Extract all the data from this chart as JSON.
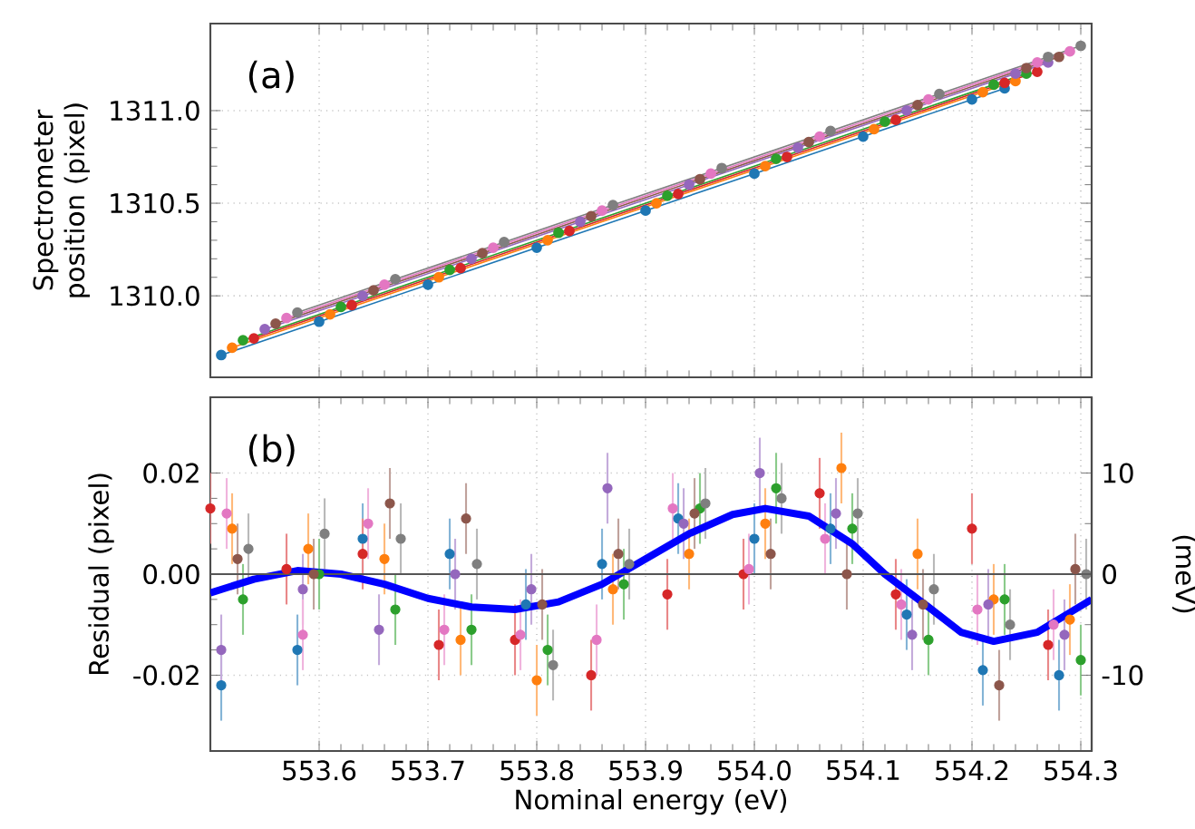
{
  "chart_data": [
    {
      "type": "line",
      "ylabel": "Spectrometer position (pixel)",
      "annotations": [
        "(a)"
      ],
      "marker": "circle",
      "grid": true,
      "tick_labels": "y",
      "xlim": [
        553.5,
        554.31
      ],
      "xticks": [
        {
          "value": 553.6,
          "label": null
        },
        {
          "value": 553.7,
          "label": null
        },
        {
          "value": 553.8,
          "label": null
        },
        {
          "value": 553.9,
          "label": null
        },
        {
          "value": 554.0,
          "label": null
        },
        {
          "value": 554.1,
          "label": null
        },
        {
          "value": 554.2,
          "label": null
        },
        {
          "value": 554.3,
          "label": null
        }
      ],
      "ylim": [
        1309.56,
        1311.47
      ],
      "yticks": [
        {
          "value": 1310,
          "label": "1310.0"
        },
        1310.5,
        {
          "value": 1311,
          "label": "1311.0"
        }
      ],
      "series": [
        {
          "color": "#1f77b4",
          "x": [
            553.51,
            553.6,
            553.7,
            553.8,
            553.9,
            554.0,
            554.1,
            554.2,
            554.23
          ],
          "values": [
            1309.68,
            1309.86,
            1310.06,
            1310.26,
            1310.46,
            1310.66,
            1310.86,
            1311.06,
            1311.12
          ]
        },
        {
          "color": "#ff7f0e",
          "x": [
            553.52,
            553.61,
            553.71,
            553.81,
            553.91,
            554.01,
            554.11,
            554.21,
            554.24
          ],
          "values": [
            1309.72,
            1309.9,
            1310.1,
            1310.3,
            1310.5,
            1310.7,
            1310.9,
            1311.1,
            1311.16
          ]
        },
        {
          "color": "#2ca02c",
          "x": [
            553.53,
            553.62,
            553.72,
            553.82,
            553.92,
            554.02,
            554.12,
            554.22,
            554.25
          ],
          "values": [
            1309.76,
            1309.94,
            1310.14,
            1310.34,
            1310.54,
            1310.74,
            1310.94,
            1311.14,
            1311.2
          ]
        },
        {
          "color": "#d62728",
          "x": [
            553.54,
            553.63,
            553.73,
            553.83,
            553.93,
            554.03,
            554.13,
            554.23,
            554.26
          ],
          "values": [
            1309.77,
            1309.95,
            1310.15,
            1310.35,
            1310.55,
            1310.75,
            1310.95,
            1311.15,
            1311.21
          ]
        },
        {
          "color": "#9467bd",
          "x": [
            553.55,
            553.64,
            553.74,
            553.84,
            553.94,
            554.04,
            554.14,
            554.24,
            554.27
          ],
          "values": [
            1309.82,
            1310.0,
            1310.2,
            1310.4,
            1310.6,
            1310.8,
            1311.0,
            1311.2,
            1311.26
          ]
        },
        {
          "color": "#8c564b",
          "x": [
            553.56,
            553.65,
            553.75,
            553.85,
            553.95,
            554.05,
            554.15,
            554.25,
            554.28
          ],
          "values": [
            1309.85,
            1310.03,
            1310.23,
            1310.43,
            1310.63,
            1310.83,
            1311.03,
            1311.23,
            1311.29
          ]
        },
        {
          "color": "#e377c2",
          "x": [
            553.57,
            553.66,
            553.76,
            553.86,
            553.96,
            554.06,
            554.16,
            554.26,
            554.29
          ],
          "values": [
            1309.88,
            1310.06,
            1310.26,
            1310.46,
            1310.66,
            1310.86,
            1311.06,
            1311.26,
            1311.32
          ]
        },
        {
          "color": "#7f7f7f",
          "x": [
            553.58,
            553.67,
            553.77,
            553.87,
            553.97,
            554.07,
            554.17,
            554.27,
            554.3
          ],
          "values": [
            1309.91,
            1310.09,
            1310.29,
            1310.49,
            1310.69,
            1310.89,
            1311.09,
            1311.29,
            1311.35
          ]
        }
      ]
    },
    {
      "type": "scatter",
      "xlabel": "Nominal energy (eV)",
      "ylabel": "Residual (pixel)",
      "y2label": "(meV)",
      "annotations": [
        "(b)"
      ],
      "marker": "circle",
      "grid": true,
      "xlim": [
        553.5,
        554.31
      ],
      "xticks": [
        553.6,
        553.7,
        553.8,
        553.9,
        {
          "value": 554.0,
          "label": "554.0"
        },
        554.1,
        554.2,
        554.3
      ],
      "ylim": [
        -0.035,
        0.035
      ],
      "yticks": [
        -0.02,
        {
          "value": 0,
          "label": "0.00"
        },
        0.02
      ],
      "y2lim": [
        -17.5,
        17.5
      ],
      "y2ticks": [
        -10,
        0,
        10
      ],
      "ref_lines": [
        {
          "axis": "y",
          "value": 0,
          "color": "#555555"
        }
      ],
      "series": [
        {
          "color": "#1f77b4",
          "x": [
            553.51,
            553.58,
            553.64,
            553.72,
            553.79,
            553.86,
            553.93,
            554.0,
            554.07,
            554.14,
            554.21,
            554.28
          ],
          "values": [
            -0.022,
            -0.015,
            0.007,
            0.004,
            -0.006,
            0.002,
            0.011,
            0.007,
            0.009,
            -0.008,
            -0.019,
            -0.02
          ],
          "errors": [
            0.007,
            0.007,
            0.007,
            0.007,
            0.007,
            0.007,
            0.007,
            0.007,
            0.007,
            0.007,
            0.007,
            0.007
          ]
        },
        {
          "color": "#ff7f0e",
          "x": [
            553.52,
            553.59,
            553.66,
            553.73,
            553.8,
            553.87,
            553.94,
            554.01,
            554.08,
            554.15,
            554.22,
            554.29
          ],
          "values": [
            0.009,
            0.005,
            0.003,
            -0.013,
            -0.021,
            -0.003,
            0.004,
            0.01,
            0.021,
            0.004,
            -0.005,
            -0.009
          ],
          "errors": [
            0.007,
            0.007,
            0.007,
            0.007,
            0.007,
            0.007,
            0.007,
            0.007,
            0.007,
            0.007,
            0.007,
            0.007
          ]
        },
        {
          "color": "#2ca02c",
          "x": [
            553.53,
            553.6,
            553.67,
            553.74,
            553.81,
            553.88,
            553.95,
            554.02,
            554.09,
            554.16,
            554.23,
            554.3
          ],
          "values": [
            -0.005,
            0.0,
            -0.007,
            -0.011,
            -0.015,
            -0.002,
            0.013,
            0.017,
            0.009,
            -0.013,
            -0.005,
            -0.017
          ],
          "errors": [
            0.007,
            0.007,
            0.007,
            0.007,
            0.007,
            0.007,
            0.007,
            0.007,
            0.007,
            0.007,
            0.007,
            0.007
          ]
        },
        {
          "color": "#d62728",
          "x": [
            553.5,
            553.57,
            553.64,
            553.71,
            553.78,
            553.85,
            553.92,
            553.99,
            554.06,
            554.13,
            554.2,
            554.27
          ],
          "values": [
            0.013,
            0.001,
            0.004,
            -0.014,
            -0.013,
            -0.02,
            -0.004,
            0.0,
            0.016,
            -0.004,
            0.009,
            -0.014
          ],
          "errors": [
            0.007,
            0.007,
            0.007,
            0.007,
            0.007,
            0.007,
            0.007,
            0.007,
            0.007,
            0.007,
            0.007,
            0.007
          ]
        },
        {
          "color": "#9467bd",
          "x": [
            553.51,
            553.585,
            553.655,
            553.725,
            553.795,
            553.865,
            553.935,
            554.005,
            554.075,
            554.145,
            554.215,
            554.285
          ],
          "values": [
            -0.015,
            -0.003,
            -0.011,
            0.0,
            -0.003,
            0.017,
            0.01,
            0.02,
            0.012,
            -0.012,
            -0.006,
            -0.012
          ],
          "errors": [
            0.007,
            0.007,
            0.007,
            0.007,
            0.007,
            0.007,
            0.007,
            0.007,
            0.007,
            0.007,
            0.007,
            0.007
          ]
        },
        {
          "color": "#8c564b",
          "x": [
            553.525,
            553.595,
            553.665,
            553.735,
            553.805,
            553.875,
            553.945,
            554.015,
            554.085,
            554.155,
            554.225,
            554.295
          ],
          "values": [
            0.003,
            0.0,
            0.014,
            0.011,
            -0.006,
            0.004,
            0.012,
            0.004,
            0.0,
            -0.006,
            -0.022,
            0.001
          ],
          "errors": [
            0.007,
            0.007,
            0.007,
            0.007,
            0.007,
            0.007,
            0.007,
            0.007,
            0.007,
            0.007,
            0.007,
            0.007
          ]
        },
        {
          "color": "#e377c2",
          "x": [
            553.515,
            553.585,
            553.645,
            553.715,
            553.785,
            553.855,
            553.925,
            553.995,
            554.065,
            554.135,
            554.205,
            554.275
          ],
          "values": [
            0.012,
            -0.012,
            0.01,
            -0.011,
            -0.012,
            -0.013,
            0.013,
            0.001,
            0.007,
            -0.006,
            -0.007,
            -0.01
          ],
          "errors": [
            0.007,
            0.007,
            0.007,
            0.007,
            0.007,
            0.007,
            0.007,
            0.007,
            0.007,
            0.007,
            0.007,
            0.007
          ]
        },
        {
          "color": "#7f7f7f",
          "x": [
            553.535,
            553.605,
            553.675,
            553.745,
            553.815,
            553.885,
            553.955,
            554.025,
            554.095,
            554.165,
            554.235,
            554.305
          ],
          "values": [
            0.005,
            0.008,
            0.007,
            0.002,
            -0.018,
            0.002,
            0.014,
            0.015,
            0.012,
            -0.003,
            -0.01,
            0.0
          ],
          "errors": [
            0.007,
            0.007,
            0.007,
            0.007,
            0.007,
            0.007,
            0.007,
            0.007,
            0.007,
            0.007,
            0.007,
            0.007
          ]
        },
        {
          "type": "line",
          "marker": "none",
          "color": "#0000ff",
          "x": [
            553.5,
            553.54,
            553.58,
            553.62,
            553.66,
            553.7,
            553.74,
            553.78,
            553.82,
            553.86,
            553.9,
            553.94,
            553.98,
            554.01,
            554.05,
            554.09,
            554.12,
            554.16,
            554.19,
            554.22,
            554.26,
            554.31
          ],
          "values": [
            -0.0037,
            -0.001,
            0.0007,
            0.0,
            -0.002,
            -0.0048,
            -0.0065,
            -0.007,
            -0.0055,
            -0.002,
            0.003,
            0.008,
            0.0118,
            0.013,
            0.0115,
            0.006,
            0.0,
            -0.0065,
            -0.0115,
            -0.0133,
            -0.0115,
            -0.005
          ]
        }
      ]
    }
  ]
}
